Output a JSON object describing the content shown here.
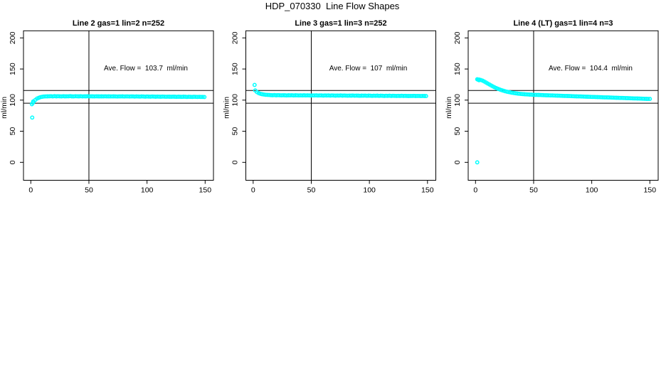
{
  "figure": {
    "title": "HDP_070330  Line Flow Shapes",
    "background": "#ffffff",
    "point_color": "#00ffff",
    "axis_color": "#000000"
  },
  "chart_data": [
    {
      "type": "scatter",
      "title": "Line 2 gas=1 lin=2 n=252",
      "annotation": "Ave. Flow =  103.7  ml/min",
      "ave_flow_ml_min": 103.7,
      "n": 252,
      "xlabel": "",
      "ylabel": "ml/min",
      "xlim": [
        -6,
        156
      ],
      "ylim": [
        -29,
        211
      ],
      "xticks": [
        0,
        50,
        100,
        150
      ],
      "yticks": [
        0,
        50,
        100,
        150,
        200
      ],
      "vline_x": 50,
      "hlines_y": [
        95,
        115.5
      ],
      "grid": false,
      "series": {
        "x_start": 2.4,
        "x_step": 1.5,
        "y": [
          97.5,
          100.5,
          102.5,
          103.8,
          104.8,
          105.4,
          105.8,
          106.0,
          106.1,
          106.2,
          106.3,
          106.0,
          106.4,
          106.1,
          106.3,
          106.2,
          106.0,
          106.3,
          106.1,
          106.2,
          106.2,
          106.4,
          106.1,
          106.0,
          106.3,
          106.2,
          106.1,
          106.3,
          106.0,
          106.2,
          106.1,
          106.3,
          106.0,
          106.2,
          106.1,
          106.0,
          106.2,
          106.1,
          105.9,
          106.1,
          106.0,
          106.2,
          105.9,
          106.1,
          106.0,
          105.9,
          106.1,
          106.0,
          105.8,
          106.0,
          105.9,
          106.1,
          105.8,
          106.0,
          105.9,
          105.8,
          106.0,
          105.9,
          105.7,
          105.9,
          105.8,
          105.7,
          105.9,
          105.8,
          105.6,
          105.8,
          105.7,
          105.6,
          105.8,
          105.7,
          105.5,
          105.7,
          105.6,
          105.5,
          105.7,
          105.6,
          105.4,
          105.6,
          105.5,
          105.4,
          105.6,
          105.5,
          105.3,
          105.5,
          105.4,
          105.3,
          105.5,
          105.4,
          105.2,
          105.4,
          105.3,
          105.2,
          105.4,
          105.3,
          105.1,
          105.3,
          105.2,
          105.1,
          105.0
        ]
      },
      "extra_points": [
        [
          1.2,
          72
        ],
        [
          0.9,
          93.5
        ],
        [
          1.8,
          95.5
        ],
        [
          2.1,
          98
        ]
      ]
    },
    {
      "type": "scatter",
      "title": "Line 3 gas=1 lin=3 n=252",
      "annotation": "Ave. Flow =  107  ml/min",
      "ave_flow_ml_min": 107,
      "n": 252,
      "xlabel": "",
      "ylabel": "ml/min",
      "xlim": [
        -6,
        156
      ],
      "ylim": [
        -29,
        211
      ],
      "xticks": [
        0,
        50,
        100,
        150
      ],
      "yticks": [
        0,
        50,
        100,
        150,
        200
      ],
      "vline_x": 50,
      "hlines_y": [
        95,
        115.5
      ],
      "grid": false,
      "series": {
        "x_start": 1.8,
        "x_step": 1.5,
        "y": [
          115.5,
          112.8,
          111.2,
          110.2,
          109.5,
          109.0,
          108.6,
          108.4,
          108.2,
          108.0,
          107.9,
          108.1,
          107.8,
          108.0,
          107.9,
          107.7,
          107.9,
          107.8,
          107.6,
          107.8,
          107.7,
          107.9,
          107.6,
          107.8,
          107.7,
          107.5,
          107.7,
          107.6,
          107.8,
          107.5,
          107.7,
          107.6,
          107.4,
          107.6,
          107.5,
          107.7,
          107.4,
          107.6,
          107.5,
          107.3,
          107.5,
          107.4,
          107.6,
          107.3,
          107.5,
          107.4,
          107.2,
          107.4,
          107.3,
          107.5,
          107.2,
          107.4,
          107.3,
          107.1,
          107.3,
          107.2,
          107.4,
          107.1,
          107.3,
          107.2,
          107.0,
          107.2,
          107.1,
          107.3,
          107.0,
          107.2,
          107.1,
          106.9,
          107.1,
          107.0,
          107.2,
          106.9,
          107.1,
          107.0,
          106.8,
          107.0,
          106.9,
          107.1,
          106.8,
          107.0,
          106.9,
          106.7,
          106.9,
          106.8,
          107.0,
          106.7,
          106.9,
          106.8,
          106.6,
          106.8,
          106.7,
          106.9,
          106.6,
          106.8,
          106.7,
          106.5,
          106.7,
          106.6,
          106.5
        ]
      },
      "extra_points": [
        [
          1.2,
          124.5
        ]
      ]
    },
    {
      "type": "scatter",
      "title": "Line 4 (LT) gas=1 lin=4 n=3",
      "annotation": "Ave. Flow =  104.4  ml/min",
      "ave_flow_ml_min": 104.4,
      "n": 3,
      "xlabel": "",
      "ylabel": "ml/min",
      "xlim": [
        -6,
        156
      ],
      "ylim": [
        -29,
        211
      ],
      "xticks": [
        0,
        50,
        100,
        150
      ],
      "yticks": [
        0,
        50,
        100,
        150,
        200
      ],
      "vline_x": 50,
      "hlines_y": [
        95,
        115.5
      ],
      "grid": false,
      "series": {
        "x_start": 1.5,
        "x_step": 1.5,
        "y": [
          133.5,
          133.2,
          132.5,
          131.4,
          130.0,
          128.4,
          126.8,
          125.2,
          123.6,
          122.0,
          120.6,
          119.3,
          118.1,
          117.0,
          116.0,
          115.1,
          114.3,
          113.6,
          113.0,
          112.4,
          111.9,
          111.4,
          111.0,
          110.6,
          110.3,
          110.0,
          109.7,
          109.5,
          109.3,
          109.1,
          108.9,
          108.8,
          108.6,
          108.5,
          108.4,
          108.3,
          108.2,
          108.1,
          108.0,
          107.9,
          107.8,
          107.7,
          107.6,
          107.5,
          107.4,
          107.3,
          107.2,
          107.1,
          107.0,
          106.9,
          106.8,
          106.7,
          106.6,
          106.5,
          106.4,
          106.3,
          106.2,
          106.1,
          106.0,
          105.9,
          105.8,
          105.7,
          105.6,
          105.5,
          105.4,
          105.3,
          105.2,
          105.1,
          105.0,
          104.9,
          104.8,
          104.7,
          104.6,
          104.5,
          104.4,
          104.3,
          104.2,
          104.1,
          104.0,
          103.9,
          103.8,
          103.7,
          103.6,
          103.5,
          103.4,
          103.3,
          103.2,
          103.1,
          103.0,
          102.9,
          102.8,
          102.7,
          102.6,
          102.5,
          102.4,
          102.3,
          102.2,
          102.1,
          102.0,
          102.0
        ]
      },
      "extra_points": [
        [
          1.5,
          0
        ],
        [
          2.2,
          132.8
        ],
        [
          3.0,
          132.0
        ]
      ]
    }
  ]
}
